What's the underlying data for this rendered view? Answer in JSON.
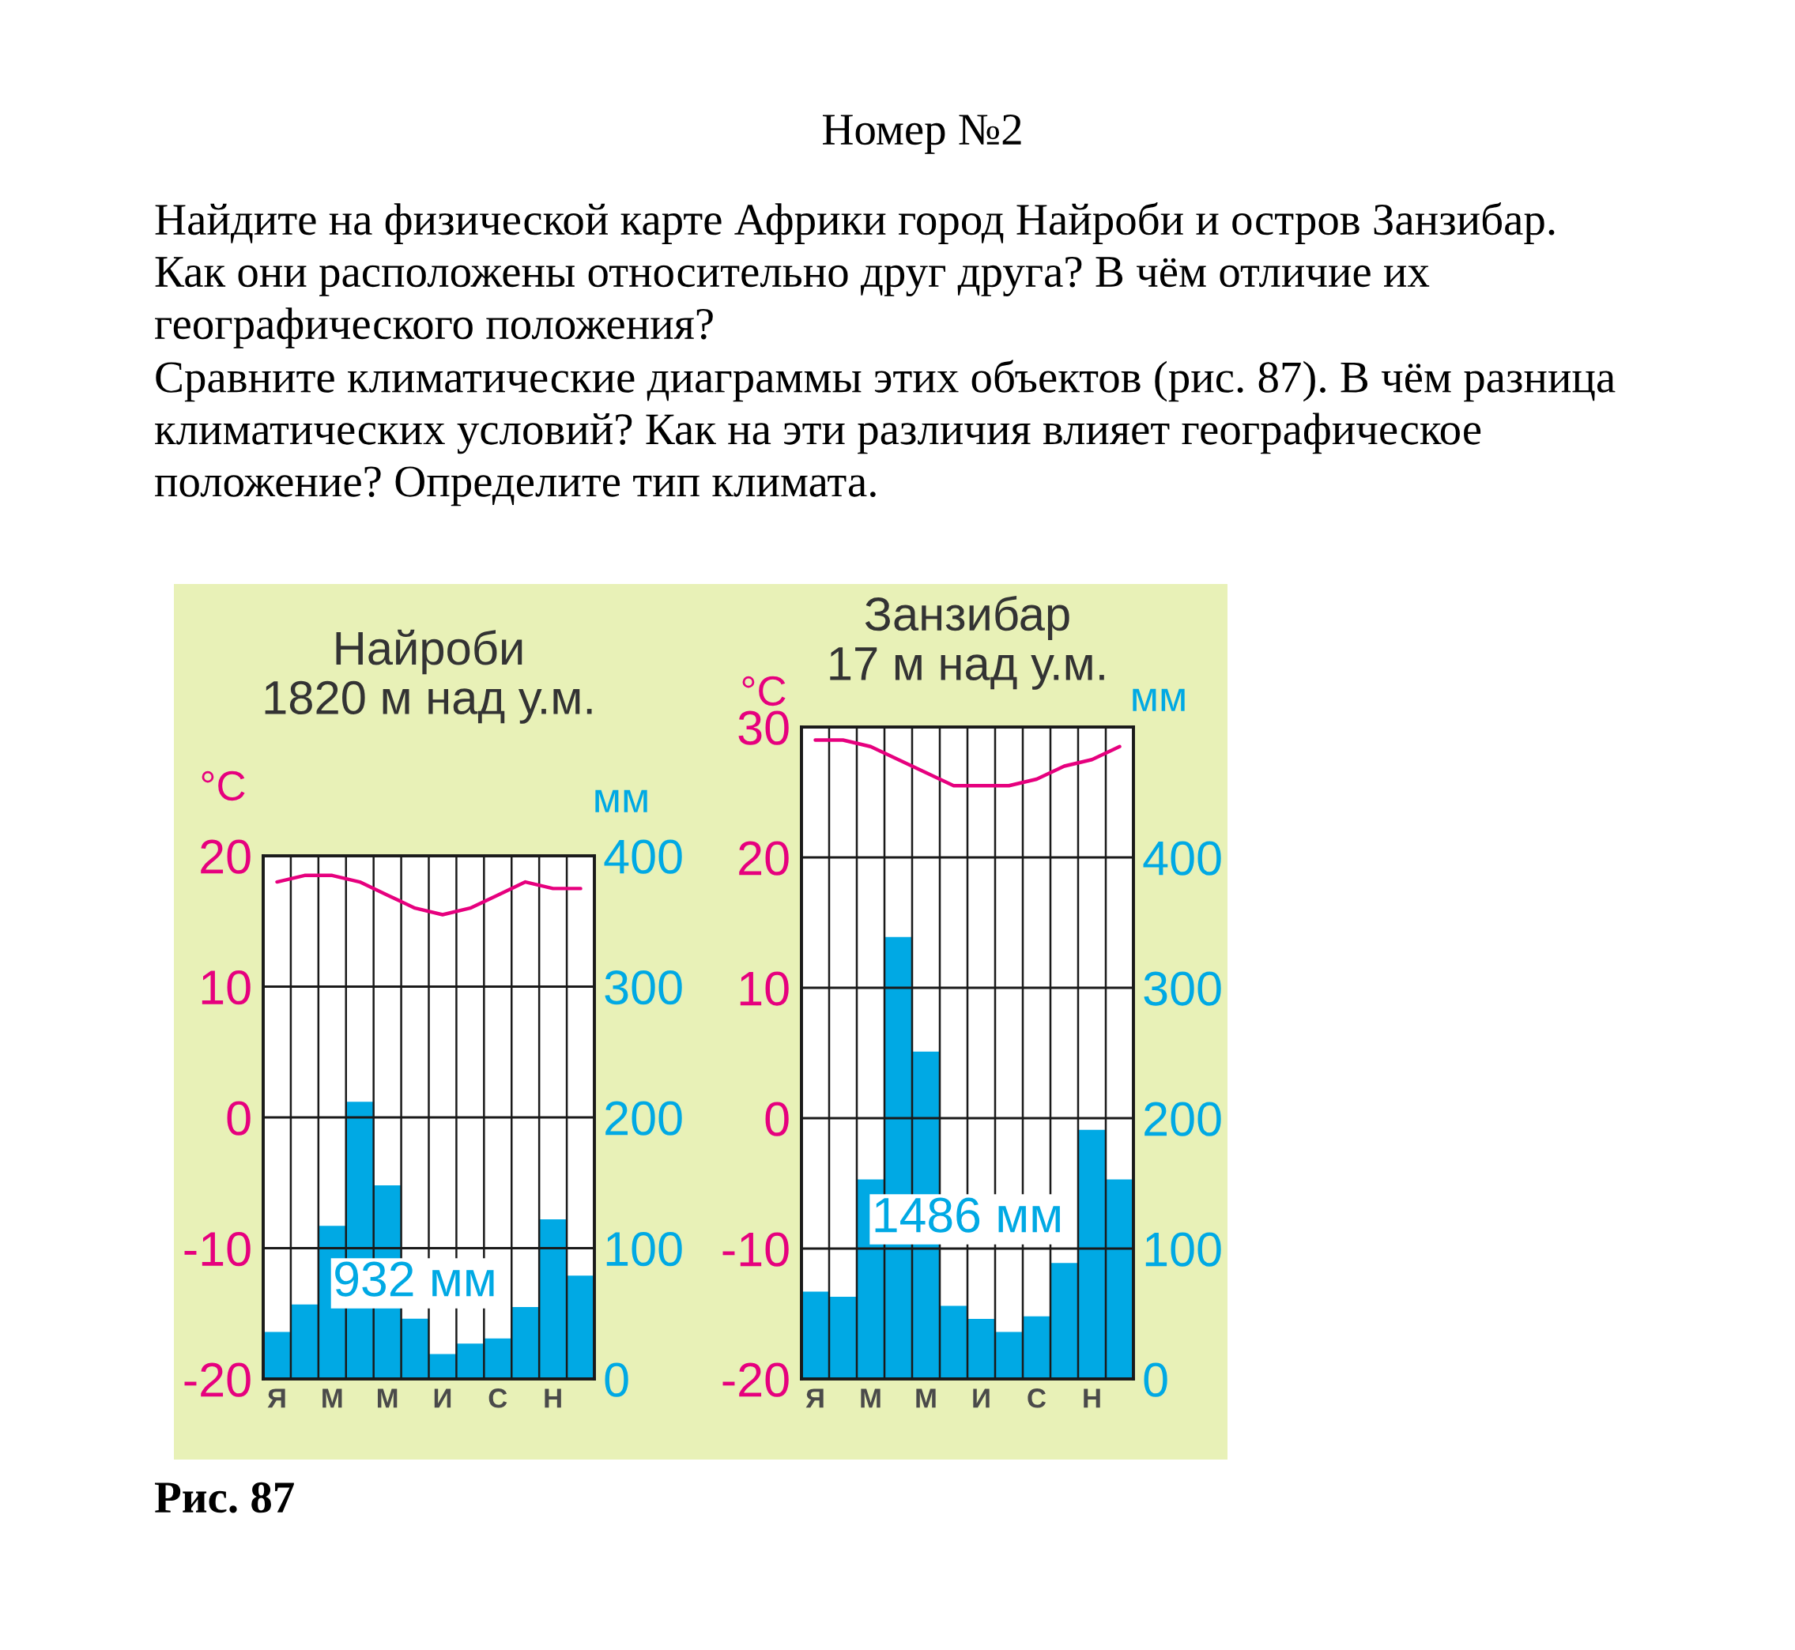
{
  "chart_data": [
    {
      "type": "other",
      "title": "Номер №2",
      "annotations": [
        "Найдите на физической карте Африки город Найроби и остров Занзибар.\nКак они расположены относительно друг друга? В чём отличие их\nгеографического положения?\nСравните климатические диаграммы этих объектов (рис. 87). В чём разница\nклиматических условий? Как на эти различия влияет географическое\nположение? Определите тип климата.",
        "Рис. 87"
      ]
    },
    {
      "type": "bar",
      "title": "Найроби",
      "subtitle": "1820 м над у.м.",
      "ylabel": "°C",
      "y2label": "мм",
      "categories": [
        "Я",
        null,
        "М",
        null,
        "М",
        null,
        "И",
        null,
        "С",
        null,
        "Н",
        null
      ],
      "series": [
        {
          "type": "bar",
          "axis": "y2",
          "color": "#00a9e4",
          "values": [
            36,
            57,
            117,
            212,
            148,
            46,
            19,
            27,
            31,
            55,
            122,
            79
          ]
        },
        {
          "type": "line",
          "axis": "y",
          "color": "#e6007e",
          "values": [
            18,
            18.5,
            18.5,
            18,
            17,
            16,
            15.5,
            16,
            17,
            18,
            17.5,
            17.5
          ]
        }
      ],
      "ylim": [
        -20,
        20
      ],
      "yticks": [
        -20,
        -10,
        0,
        10,
        20
      ],
      "y2lim": [
        0,
        400
      ],
      "y2ticks": [
        0,
        100,
        200,
        300,
        400
      ],
      "grid": true,
      "annotations": [
        "932 мм"
      ]
    },
    {
      "type": "bar",
      "title": "Занзибар",
      "subtitle": "17 м над у.м.",
      "ylabel": "°C",
      "y2label": "мм",
      "categories": [
        "Я",
        null,
        "М",
        null,
        "М",
        null,
        "И",
        null,
        "С",
        null,
        "Н",
        null
      ],
      "series": [
        {
          "type": "bar",
          "axis": "y2",
          "color": "#00a9e4",
          "values": [
            67,
            63,
            153,
            339,
            251,
            56,
            46,
            36,
            48,
            89,
            191,
            153
          ]
        },
        {
          "type": "line",
          "axis": "y",
          "color": "#e6007e",
          "values": [
            29,
            29,
            28.5,
            27.5,
            26.5,
            25.5,
            25.5,
            25.5,
            26,
            27,
            27.5,
            28.5
          ]
        }
      ],
      "ylim": [
        -20,
        30
      ],
      "yticks": [
        -20,
        -10,
        0,
        10,
        20,
        30
      ],
      "y2lim": [
        0,
        500
      ],
      "y2ticks": [
        0,
        100,
        200,
        300,
        400
      ],
      "grid": true,
      "annotations": [
        "1486 мм"
      ]
    }
  ]
}
